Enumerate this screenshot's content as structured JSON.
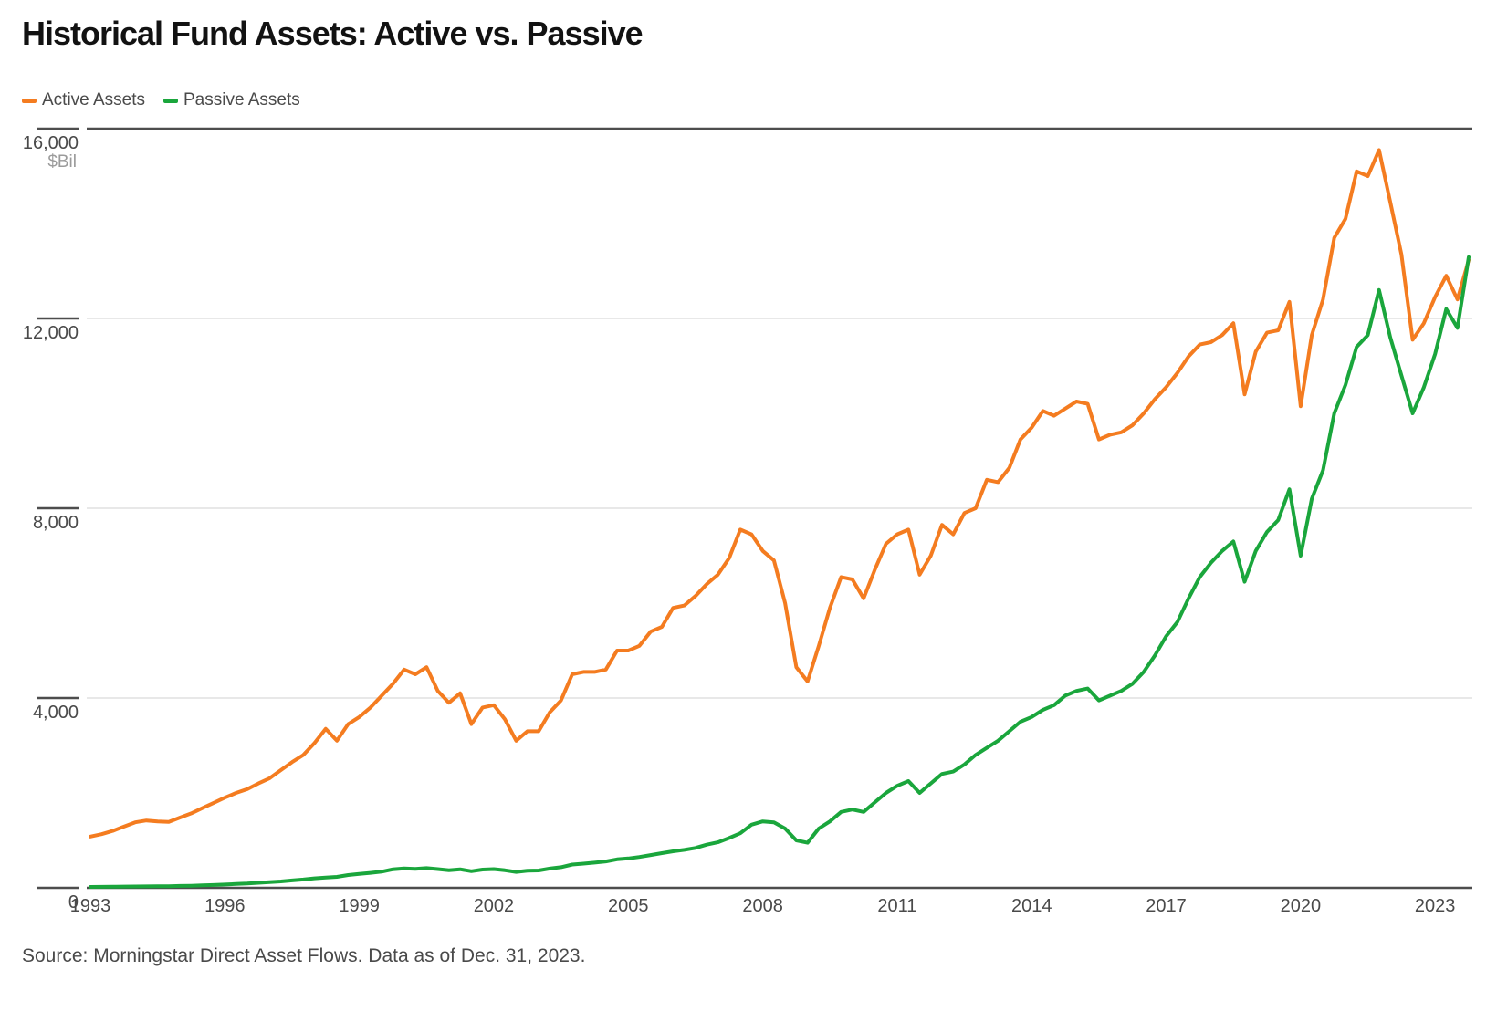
{
  "title": "Historical Fund Assets: Active vs. Passive",
  "legend": {
    "items": [
      {
        "label": "Active Assets",
        "color": "#F47C20"
      },
      {
        "label": "Passive Assets",
        "color": "#1AA63C"
      }
    ]
  },
  "source": "Source: Morningstar Direct Asset Flows. Data as of Dec. 31, 2023.",
  "chart_data": {
    "type": "line",
    "title": "Historical Fund Assets: Active vs. Passive",
    "ylabel": "$Bil",
    "xlabel": "",
    "unit_label": "$Bil",
    "ylim": [
      0,
      16000
    ],
    "y_ticks": [
      0,
      4000,
      8000,
      12000,
      16000
    ],
    "x_tick_years": [
      1993,
      1996,
      1999,
      2002,
      2005,
      2008,
      2011,
      2014,
      2017,
      2020,
      2023
    ],
    "x_start_year": 1993,
    "x_step_years": 0.25,
    "grid": true,
    "legend_position": "top-left",
    "axis_color": "#4d4d4d",
    "grid_color": "#d9d9d9",
    "series": [
      {
        "name": "Active Assets",
        "color": "#F47C20",
        "values": [
          1080,
          1130,
          1200,
          1290,
          1380,
          1420,
          1400,
          1390,
          1480,
          1570,
          1680,
          1790,
          1900,
          2000,
          2080,
          2200,
          2310,
          2480,
          2650,
          2800,
          3050,
          3350,
          3100,
          3450,
          3600,
          3800,
          4050,
          4300,
          4600,
          4500,
          4650,
          4150,
          3900,
          4100,
          3450,
          3800,
          3850,
          3550,
          3100,
          3300,
          3300,
          3700,
          3950,
          4500,
          4550,
          4550,
          4600,
          5000,
          5000,
          5100,
          5400,
          5500,
          5900,
          5950,
          6150,
          6400,
          6600,
          6950,
          7550,
          7450,
          7100,
          6900,
          6000,
          4650,
          4350,
          5100,
          5900,
          6550,
          6500,
          6100,
          6700,
          7250,
          7450,
          7550,
          6600,
          7000,
          7650,
          7450,
          7900,
          8000,
          8600,
          8550,
          8850,
          9450,
          9700,
          10050,
          9950,
          10100,
          10250,
          10200,
          9450,
          9550,
          9600,
          9750,
          10000,
          10300,
          10550,
          10850,
          11200,
          11450,
          11500,
          11650,
          11900,
          10400,
          11300,
          11700,
          11750,
          12350,
          10150,
          11650,
          12400,
          13700,
          14100,
          15100,
          15000,
          15550,
          14450,
          13350,
          11550,
          11900,
          12450,
          12900,
          12400,
          13230
        ]
      },
      {
        "name": "Passive Assets",
        "color": "#1AA63C",
        "values": [
          20,
          22,
          24,
          26,
          28,
          30,
          32,
          35,
          40,
          45,
          52,
          60,
          70,
          80,
          90,
          105,
          120,
          135,
          155,
          175,
          200,
          215,
          230,
          270,
          295,
          315,
          340,
          390,
          410,
          400,
          415,
          395,
          370,
          390,
          350,
          385,
          395,
          370,
          335,
          360,
          365,
          405,
          435,
          490,
          510,
          530,
          555,
          600,
          620,
          650,
          690,
          730,
          770,
          800,
          840,
          910,
          960,
          1050,
          1150,
          1330,
          1400,
          1380,
          1250,
          1000,
          950,
          1250,
          1400,
          1600,
          1650,
          1600,
          1800,
          2000,
          2150,
          2250,
          2000,
          2200,
          2400,
          2450,
          2600,
          2800,
          2950,
          3100,
          3300,
          3500,
          3600,
          3750,
          3850,
          4050,
          4150,
          4200,
          3950,
          4050,
          4150,
          4300,
          4550,
          4900,
          5300,
          5600,
          6100,
          6550,
          6850,
          7100,
          7300,
          6450,
          7100,
          7500,
          7750,
          8400,
          7000,
          8200,
          8800,
          10000,
          10600,
          11400,
          11650,
          12600,
          11600,
          10800,
          10000,
          10550,
          11250,
          12200,
          11800,
          13290
        ]
      }
    ]
  }
}
